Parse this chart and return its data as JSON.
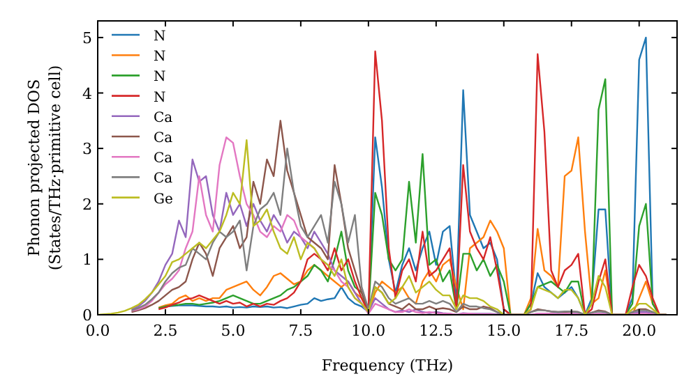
{
  "chart_data": {
    "type": "line",
    "xlabel": "Frequency (THz)",
    "ylabel": "Phonon projected DOS\n(States/THz·primitive cell)",
    "legend": "top left",
    "xlim": [
      0,
      21.4
    ],
    "ylim": [
      0,
      5.3
    ],
    "xticks": [
      {
        "value": 0,
        "label": "0.0"
      },
      {
        "value": 2.5,
        "label": "2.5"
      },
      {
        "value": 5,
        "label": "5.0"
      },
      {
        "value": 7.5,
        "label": "7.5"
      },
      {
        "value": 10,
        "label": "10.0"
      },
      {
        "value": 12.5,
        "label": "12.5"
      },
      {
        "value": 15,
        "label": "15.0"
      },
      {
        "value": 17.5,
        "label": "17.5"
      },
      {
        "value": 20,
        "label": "20.0"
      }
    ],
    "yticks": [
      0,
      1,
      2,
      3,
      4,
      5
    ],
    "x": [
      0,
      0.25,
      0.5,
      0.75,
      1,
      1.25,
      1.5,
      1.75,
      2,
      2.25,
      2.5,
      2.75,
      3,
      3.25,
      3.5,
      3.75,
      4,
      4.25,
      4.5,
      4.75,
      5,
      5.25,
      5.5,
      5.75,
      6,
      6.25,
      6.5,
      6.75,
      7,
      7.25,
      7.5,
      7.75,
      8,
      8.25,
      8.5,
      8.75,
      9,
      9.25,
      9.5,
      9.75,
      10,
      10.25,
      10.5,
      10.75,
      11,
      11.25,
      11.5,
      11.75,
      12,
      12.25,
      12.5,
      12.75,
      13,
      13.25,
      13.5,
      13.75,
      14,
      14.25,
      14.5,
      14.75,
      15,
      15.25,
      15.5,
      15.75,
      16,
      16.25,
      16.5,
      16.75,
      17,
      17.25,
      17.5,
      17.75,
      18,
      18.25,
      18.5,
      18.75,
      19,
      19.25,
      19.5,
      19.75,
      20,
      20.25,
      20.5,
      20.75,
      21
    ],
    "series": [
      {
        "name": "N",
        "color": "#1f77b4",
        "values": [
          null,
          null,
          null,
          null,
          null,
          null,
          null,
          null,
          null,
          0.12,
          0.15,
          0.16,
          0.17,
          0.17,
          0.17,
          0.16,
          0.15,
          0.15,
          0.14,
          0.15,
          0.13,
          0.14,
          0.13,
          0.15,
          0.14,
          0.15,
          0.13,
          0.14,
          0.12,
          0.15,
          0.18,
          0.2,
          0.3,
          0.25,
          0.28,
          0.3,
          0.5,
          0.3,
          0.2,
          0.15,
          0.05,
          3.2,
          2.3,
          1.0,
          0.4,
          0.9,
          1.2,
          0.8,
          1.2,
          1.5,
          0.9,
          1.5,
          1.6,
          0.3,
          4.05,
          1.8,
          1.5,
          1.2,
          1.3,
          1.0,
          0.1,
          0,
          0,
          0,
          0.2,
          0.75,
          0.5,
          0.4,
          0.3,
          0.4,
          0.5,
          0.3,
          0,
          0.3,
          1.9,
          1.9,
          0,
          0,
          0,
          0.3,
          4.6,
          5.0,
          0.2,
          0,
          0
        ]
      },
      {
        "name": "N",
        "color": "#ff7f0e",
        "values": [
          null,
          null,
          null,
          null,
          null,
          null,
          null,
          null,
          null,
          0.13,
          0.17,
          0.2,
          0.3,
          0.35,
          0.25,
          0.3,
          0.25,
          0.3,
          0.3,
          0.45,
          0.5,
          0.55,
          0.6,
          0.45,
          0.35,
          0.5,
          0.7,
          0.75,
          0.65,
          0.55,
          0.6,
          0.8,
          0.9,
          0.8,
          0.7,
          0.6,
          0.5,
          0.6,
          0.4,
          0.3,
          0.05,
          0.4,
          0.6,
          0.5,
          0.4,
          0.5,
          0.3,
          0.2,
          0.6,
          0.8,
          0.6,
          0.9,
          1.0,
          0.5,
          0.1,
          1.2,
          1.3,
          1.4,
          1.7,
          1.5,
          1.2,
          0,
          0,
          0,
          0.3,
          1.55,
          0.8,
          0.7,
          0.5,
          2.5,
          2.6,
          3.2,
          1.5,
          0.2,
          0.3,
          0.8,
          0,
          0,
          0,
          0,
          0.3,
          0.6,
          0.2,
          0,
          0
        ]
      },
      {
        "name": "N",
        "color": "#2ca02c",
        "values": [
          null,
          null,
          null,
          null,
          null,
          null,
          null,
          null,
          null,
          0.12,
          0.15,
          0.17,
          0.18,
          0.2,
          0.2,
          0.18,
          0.2,
          0.22,
          0.25,
          0.3,
          0.35,
          0.3,
          0.25,
          0.2,
          0.2,
          0.25,
          0.3,
          0.35,
          0.45,
          0.5,
          0.6,
          0.7,
          0.9,
          0.8,
          0.6,
          1.0,
          1.5,
          0.8,
          0.5,
          0.4,
          0.05,
          2.2,
          1.8,
          1.0,
          0.8,
          1.0,
          2.4,
          1.3,
          2.9,
          0.9,
          1.0,
          0.6,
          0.8,
          0.1,
          1.1,
          1.1,
          0.8,
          1.0,
          0.7,
          0.9,
          0.6,
          0,
          0,
          0,
          0.2,
          0.5,
          0.55,
          0.6,
          0.5,
          0.4,
          0.6,
          0.6,
          0,
          0.2,
          3.7,
          4.25,
          0,
          0,
          0,
          0.2,
          1.6,
          2.0,
          0.2,
          0,
          0
        ]
      },
      {
        "name": "N",
        "color": "#d62728",
        "values": [
          null,
          null,
          null,
          null,
          null,
          null,
          null,
          null,
          null,
          0.1,
          0.13,
          0.18,
          0.22,
          0.28,
          0.3,
          0.35,
          0.3,
          0.25,
          0.2,
          0.25,
          0.2,
          0.22,
          0.15,
          0.2,
          0.15,
          0.2,
          0.18,
          0.25,
          0.3,
          0.4,
          0.6,
          1.0,
          1.1,
          1.0,
          0.8,
          1.2,
          0.8,
          1.0,
          0.6,
          0.3,
          0.05,
          4.75,
          3.5,
          1.2,
          0.3,
          0.8,
          1.0,
          0.6,
          1.5,
          0.7,
          0.8,
          1.0,
          1.2,
          0.1,
          2.7,
          1.5,
          1.2,
          1.0,
          1.4,
          0.8,
          0.1,
          0,
          0,
          0,
          0.1,
          4.7,
          3.3,
          0.8,
          0.5,
          0.8,
          0.9,
          1.1,
          0,
          0.1,
          0.6,
          1.0,
          0,
          0,
          0,
          0.5,
          0.9,
          0.7,
          0.3,
          0,
          0
        ]
      },
      {
        "name": "Ca",
        "color": "#9467bd",
        "values": [
          null,
          null,
          null,
          null,
          null,
          0.1,
          0.15,
          0.25,
          0.4,
          0.6,
          0.9,
          1.1,
          1.7,
          1.4,
          2.8,
          2.4,
          2.5,
          1.8,
          1.5,
          2.2,
          1.8,
          2.0,
          1.6,
          2.0,
          1.7,
          1.5,
          1.8,
          1.6,
          1.3,
          1.5,
          1.4,
          1.2,
          1.5,
          1.3,
          1.1,
          0.8,
          0.7,
          0.6,
          0.4,
          0.2,
          0.05,
          0.3,
          0.2,
          0.1,
          0.05,
          0.08,
          0.05,
          0.1,
          0.05,
          0.03,
          0.05,
          0.03,
          0.02,
          0,
          0.03,
          0.02,
          0.02,
          0.02,
          0.02,
          0.01,
          0,
          0,
          0,
          0,
          0,
          0.02,
          0.02,
          0.02,
          0.02,
          0.02,
          0.02,
          0.02,
          0,
          0.01,
          0.02,
          0.02,
          0,
          0,
          0,
          0.02,
          0.05,
          0.05,
          0.02,
          0,
          0
        ]
      },
      {
        "name": "Ca",
        "color": "#8c564b",
        "values": [
          null,
          null,
          null,
          null,
          null,
          0.05,
          0.08,
          0.12,
          0.18,
          0.25,
          0.35,
          0.45,
          0.5,
          0.6,
          1.0,
          1.3,
          1.1,
          0.7,
          1.2,
          1.4,
          1.6,
          1.2,
          1.4,
          2.4,
          2.0,
          2.8,
          2.5,
          3.5,
          2.6,
          2.2,
          1.8,
          1.4,
          1.3,
          1.2,
          1.0,
          2.7,
          2.0,
          1.2,
          0.8,
          0.4,
          0.1,
          0.5,
          0.4,
          0.2,
          0.15,
          0.1,
          0.2,
          0.1,
          0.1,
          0.15,
          0.1,
          0.12,
          0.1,
          0.05,
          0.15,
          0.1,
          0.1,
          0.15,
          0.12,
          0.05,
          0,
          0,
          0,
          0,
          0.05,
          0.1,
          0.08,
          0.06,
          0.05,
          0.05,
          0.06,
          0.05,
          0,
          0.04,
          0.08,
          0.06,
          0,
          0,
          0,
          0.05,
          0.1,
          0.1,
          0.05,
          0,
          0
        ]
      },
      {
        "name": "Ca",
        "color": "#e377c2",
        "values": [
          null,
          null,
          null,
          null,
          null,
          0.07,
          0.1,
          0.15,
          0.25,
          0.4,
          0.55,
          0.65,
          0.8,
          1.2,
          1.5,
          2.5,
          1.8,
          1.5,
          2.7,
          3.2,
          3.1,
          2.5,
          2.0,
          1.8,
          1.5,
          1.4,
          1.6,
          1.5,
          1.8,
          1.7,
          1.4,
          1.3,
          1.2,
          1.0,
          0.9,
          0.8,
          0.6,
          0.5,
          0.3,
          0.2,
          0.02,
          0.2,
          0.15,
          0.1,
          0.05,
          0.05,
          0.1,
          0.05,
          0.03,
          0.05,
          0.03,
          0.02,
          0.02,
          0,
          0.02,
          0.02,
          0.01,
          0.01,
          0.01,
          0,
          0,
          0,
          0,
          0,
          0,
          0.02,
          0.02,
          0.02,
          0.01,
          0.02,
          0.02,
          0.01,
          0,
          0.01,
          0.02,
          0.01,
          0,
          0,
          0,
          0.01,
          0.02,
          0.02,
          0.01,
          0,
          0
        ]
      },
      {
        "name": "Ca",
        "color": "#7f7f7f",
        "values": [
          null,
          null,
          null,
          null,
          null,
          0.08,
          0.12,
          0.18,
          0.28,
          0.4,
          0.6,
          0.75,
          0.85,
          0.9,
          1.2,
          1.1,
          1.0,
          1.3,
          1.5,
          1.4,
          1.5,
          1.7,
          0.8,
          1.6,
          1.9,
          2.0,
          2.2,
          1.8,
          3.0,
          2.2,
          1.6,
          1.4,
          1.6,
          1.8,
          1.3,
          2.4,
          2.0,
          1.3,
          1.8,
          0.5,
          0.1,
          0.6,
          0.5,
          0.3,
          0.2,
          0.25,
          0.3,
          0.2,
          0.2,
          0.25,
          0.2,
          0.25,
          0.2,
          0.05,
          0.2,
          0.15,
          0.15,
          0.12,
          0.1,
          0.05,
          0,
          0,
          0,
          0,
          0.05,
          0.08,
          0.08,
          0.06,
          0.05,
          0.06,
          0.06,
          0.05,
          0,
          0.04,
          0.06,
          0.05,
          0,
          0,
          0,
          0.05,
          0.08,
          0.08,
          0.05,
          0,
          0
        ]
      },
      {
        "name": "Ge",
        "color": "#bcbd22",
        "values": [
          0,
          0.01,
          0.02,
          0.04,
          0.07,
          0.12,
          0.18,
          0.28,
          0.4,
          0.55,
          0.7,
          0.95,
          1.0,
          1.1,
          1.2,
          1.3,
          1.2,
          1.35,
          1.5,
          1.8,
          2.2,
          2.0,
          3.15,
          1.6,
          1.7,
          1.9,
          1.5,
          1.2,
          1.1,
          1.4,
          1.0,
          1.3,
          1.2,
          1.0,
          0.9,
          0.7,
          1.0,
          0.5,
          0.3,
          0.2,
          0.05,
          0.5,
          0.4,
          0.2,
          0.3,
          0.5,
          0.7,
          0.4,
          0.5,
          0.6,
          0.45,
          0.35,
          0.35,
          0.1,
          0.35,
          0.3,
          0.3,
          0.25,
          0.15,
          0.1,
          0,
          0,
          0,
          0,
          0.1,
          0.5,
          0.45,
          0.4,
          0.3,
          0.45,
          0.45,
          0.3,
          0,
          0.2,
          0.7,
          0.5,
          0,
          0,
          0,
          0.1,
          0.2,
          0.2,
          0.1,
          0,
          0
        ]
      }
    ]
  }
}
